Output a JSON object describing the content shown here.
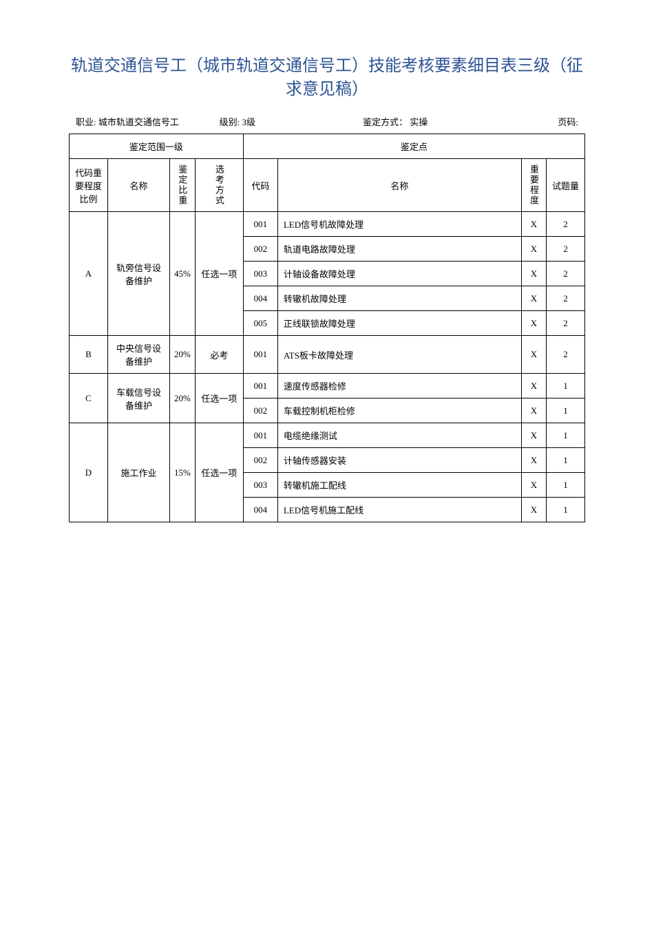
{
  "title": "轨道交通信号工（城市轨道交通信号工）技能考核要素细目表三级（征求意见稿）",
  "info": {
    "occupation_label": "职业:",
    "occupation": "城市轨道交通信号工",
    "level_label": "级别:",
    "level": "3级",
    "method_label": "鉴定方式：",
    "method": "实操",
    "page_label": "页码:"
  },
  "headers": {
    "scope_header": "鉴定范围一级",
    "point_header": "鉴定点",
    "code_importance": "代码重要程度比例",
    "name": "名称",
    "weight": "鉴定比重",
    "exam_method": "选考方式",
    "item_code": "代码",
    "item_name": "名称",
    "importance": "重要程度",
    "qty": "试题量"
  },
  "groups": [
    {
      "code": "A",
      "name": "轨旁信号设备维护",
      "weight": "45%",
      "method": "任选一项",
      "items": [
        {
          "code": "001",
          "name": "LED信号机故障处理",
          "importance": "X",
          "qty": "2"
        },
        {
          "code": "002",
          "name": "轨道电路故障处理",
          "importance": "X",
          "qty": "2"
        },
        {
          "code": "003",
          "name": "计轴设备故障处理",
          "importance": "X",
          "qty": "2"
        },
        {
          "code": "004",
          "name": "转辙机故障处理",
          "importance": "X",
          "qty": "2"
        },
        {
          "code": "005",
          "name": "正线联锁故障处理",
          "importance": "X",
          "qty": "2"
        }
      ]
    },
    {
      "code": "B",
      "name": "中央信号设备维护",
      "weight": "20%",
      "method": "必考",
      "items": [
        {
          "code": "001",
          "name": "ATS板卡故障处理",
          "importance": "X",
          "qty": "2"
        }
      ]
    },
    {
      "code": "C",
      "name": "车载信号设备维护",
      "weight": "20%",
      "method": "任选一项",
      "items": [
        {
          "code": "001",
          "name": "速度传感器检修",
          "importance": "X",
          "qty": "1"
        },
        {
          "code": "002",
          "name": "车载控制机柜检修",
          "importance": "X",
          "qty": "1"
        }
      ]
    },
    {
      "code": "D",
      "name": "施工作业",
      "weight": "15%",
      "method": "任选一项",
      "items": [
        {
          "code": "001",
          "name": "电缆绝缘测试",
          "importance": "X",
          "qty": "1"
        },
        {
          "code": "002",
          "name": "计轴传感器安装",
          "importance": "X",
          "qty": "1"
        },
        {
          "code": "003",
          "name": "转辙机施工配线",
          "importance": "X",
          "qty": "1"
        },
        {
          "code": "004",
          "name": "LED信号机施工配线",
          "importance": "X",
          "qty": "1"
        }
      ]
    }
  ]
}
